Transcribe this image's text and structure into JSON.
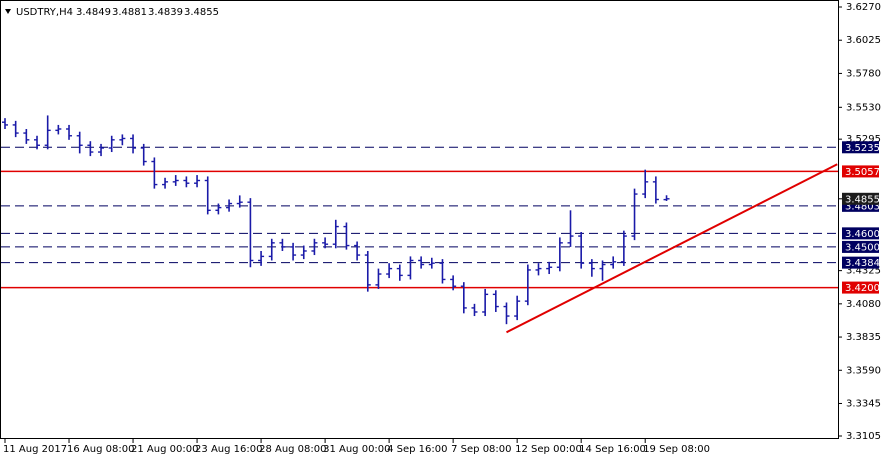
{
  "chart_data": {
    "type": "ohlc",
    "title": "USDTRY,H4",
    "color": "#1a1aa8",
    "categories": [
      "11 Aug 2017",
      null,
      null,
      null,
      null,
      null,
      "16 Aug 08:00",
      null,
      null,
      null,
      null,
      null,
      "21 Aug 00:00",
      null,
      null,
      null,
      null,
      null,
      "23 Aug 16:00",
      null,
      null,
      null,
      null,
      null,
      "28 Aug 08:00",
      null,
      null,
      null,
      null,
      null,
      "31 Aug 00:00",
      null,
      null,
      null,
      null,
      null,
      "4 Sep 16:00",
      null,
      null,
      null,
      null,
      null,
      "7 Sep 08:00",
      null,
      null,
      null,
      null,
      null,
      "12 Sep 00:00",
      null,
      null,
      null,
      null,
      null,
      "14 Sep 16:00",
      null,
      null,
      null,
      null,
      null,
      "19 Sep 08:00",
      null,
      null
    ],
    "open": [
      3.542,
      3.54,
      3.534,
      3.529,
      3.525,
      3.536,
      3.537,
      3.532,
      3.525,
      3.52,
      3.523,
      3.529,
      3.53,
      3.523,
      3.513,
      3.496,
      3.498,
      3.499,
      3.497,
      3.499,
      3.477,
      3.479,
      3.482,
      3.483,
      3.44,
      3.443,
      3.453,
      3.45,
      3.444,
      3.447,
      3.453,
      3.452,
      3.465,
      3.451,
      3.444,
      3.422,
      3.43,
      3.434,
      3.429,
      3.44,
      3.437,
      3.438,
      3.426,
      3.421,
      3.405,
      3.402,
      3.415,
      3.406,
      3.399,
      3.41,
      3.433,
      3.434,
      3.435,
      3.453,
      3.458,
      3.438,
      3.434,
      3.437,
      3.439,
      3.458,
      3.489,
      3.498,
      3.4849
    ],
    "high": [
      3.545,
      3.543,
      3.537,
      3.532,
      3.547,
      3.54,
      3.54,
      3.535,
      3.528,
      3.526,
      3.532,
      3.533,
      3.533,
      3.526,
      3.516,
      3.501,
      3.503,
      3.502,
      3.503,
      3.502,
      3.482,
      3.485,
      3.488,
      3.486,
      3.447,
      3.456,
      3.456,
      3.453,
      3.451,
      3.456,
      3.457,
      3.47,
      3.468,
      3.454,
      3.447,
      3.434,
      3.438,
      3.437,
      3.443,
      3.443,
      3.442,
      3.441,
      3.429,
      3.424,
      3.408,
      3.419,
      3.418,
      3.409,
      3.414,
      3.437,
      3.438,
      3.439,
      3.457,
      3.477,
      3.461,
      3.441,
      3.44,
      3.443,
      3.462,
      3.493,
      3.507,
      3.502,
      3.4881
    ],
    "low": [
      3.537,
      3.531,
      3.526,
      3.522,
      3.522,
      3.533,
      3.529,
      3.519,
      3.517,
      3.517,
      3.52,
      3.525,
      3.519,
      3.51,
      3.493,
      3.493,
      3.495,
      3.494,
      3.494,
      3.474,
      3.474,
      3.476,
      3.479,
      3.435,
      3.436,
      3.44,
      3.447,
      3.44,
      3.441,
      3.444,
      3.449,
      3.449,
      3.448,
      3.44,
      3.417,
      3.419,
      3.427,
      3.425,
      3.426,
      3.434,
      3.434,
      3.423,
      3.418,
      3.401,
      3.399,
      3.399,
      3.402,
      3.393,
      3.396,
      3.407,
      3.429,
      3.43,
      3.432,
      3.45,
      3.434,
      3.428,
      3.425,
      3.434,
      3.436,
      3.455,
      3.486,
      3.482,
      3.4839
    ],
    "close": [
      3.54,
      3.534,
      3.529,
      3.525,
      3.536,
      3.537,
      3.532,
      3.525,
      3.52,
      3.523,
      3.529,
      3.53,
      3.523,
      3.513,
      3.496,
      3.498,
      3.499,
      3.497,
      3.499,
      3.477,
      3.479,
      3.482,
      3.483,
      3.44,
      3.443,
      3.453,
      3.45,
      3.444,
      3.447,
      3.453,
      3.452,
      3.465,
      3.451,
      3.444,
      3.422,
      3.43,
      3.434,
      3.429,
      3.44,
      3.437,
      3.438,
      3.426,
      3.421,
      3.405,
      3.402,
      3.415,
      3.406,
      3.399,
      3.41,
      3.433,
      3.434,
      3.435,
      3.453,
      3.458,
      3.438,
      3.434,
      3.437,
      3.439,
      3.458,
      3.489,
      3.498,
      3.485,
      3.4855
    ],
    "ylim": [
      3.3105,
      3.627
    ],
    "yticks": [
      {
        "value": 3.627,
        "label": "3.6270"
      },
      3.6025,
      {
        "value": 3.578,
        "label": "3.5780"
      },
      {
        "value": 3.553,
        "label": "3.5530"
      },
      3.5295,
      3.4325,
      {
        "value": 3.408,
        "label": "3.4080"
      },
      3.3835,
      {
        "value": 3.359,
        "label": "3.3590"
      },
      3.3345,
      3.3105
    ],
    "levels": [
      {
        "value": 3.5235,
        "color": "#000060",
        "style": "dash"
      },
      {
        "value": 3.5057,
        "color": "#e00000",
        "style": "solid"
      },
      {
        "value": 3.4803,
        "color": "#000060",
        "style": "dash"
      },
      {
        "value": {
          "value": 3.46,
          "label": "3.4600"
        },
        "color": "#000060",
        "style": "dash"
      },
      {
        "value": {
          "value": 3.45,
          "label": "3.4500"
        },
        "color": "#000060",
        "style": "dash"
      },
      {
        "value": 3.4384,
        "color": "#000060",
        "style": "dash"
      },
      {
        "value": {
          "value": 3.42,
          "label": "3.4200"
        },
        "color": "#e00000",
        "style": "solid"
      }
    ],
    "trendline": {
      "color": "#e00000",
      "x_index": [
        47,
        78
      ],
      "y": [
        3.387,
        3.511
      ]
    }
  }
}
